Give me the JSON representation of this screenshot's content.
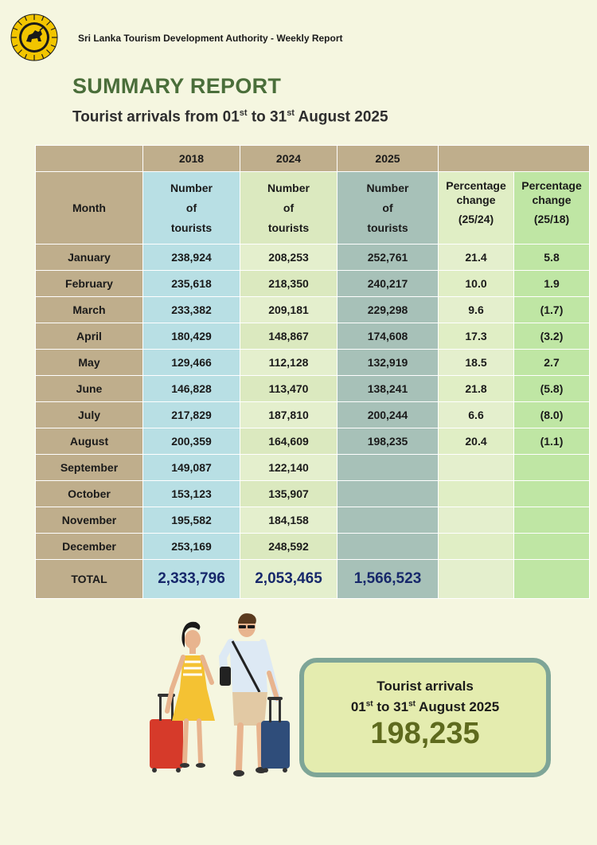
{
  "header": {
    "org_line": "Sri Lanka Tourism Development Authority - Weekly Report",
    "title": "SUMMARY REPORT",
    "subtitle_parts": [
      "Tourist arrivals from 01",
      "st",
      " to 31",
      "st",
      " August 2025"
    ]
  },
  "table": {
    "years": [
      "2018",
      "2024",
      "2025"
    ],
    "month_header": "Month",
    "count_header": [
      "Number",
      "of",
      "tourists"
    ],
    "pct_headers": [
      {
        "line1": "Percentage",
        "line2": "change",
        "line3": "(25/24)"
      },
      {
        "line1": "Percentage",
        "line2": "change",
        "line3": "(25/18)"
      }
    ],
    "rows": [
      {
        "month": "January",
        "y2018": "238,924",
        "y2024": "208,253",
        "y2025": "252,761",
        "pct_25_24": "21.4",
        "pct_25_18": "5.8"
      },
      {
        "month": "February",
        "y2018": "235,618",
        "y2024": "218,350",
        "y2025": "240,217",
        "pct_25_24": "10.0",
        "pct_25_18": "1.9"
      },
      {
        "month": "March",
        "y2018": "233,382",
        "y2024": "209,181",
        "y2025": "229,298",
        "pct_25_24": "9.6",
        "pct_25_18": "(1.7)"
      },
      {
        "month": "April",
        "y2018": "180,429",
        "y2024": "148,867",
        "y2025": "174,608",
        "pct_25_24": "17.3",
        "pct_25_18": "(3.2)"
      },
      {
        "month": "May",
        "y2018": "129,466",
        "y2024": "112,128",
        "y2025": "132,919",
        "pct_25_24": "18.5",
        "pct_25_18": "2.7"
      },
      {
        "month": "June",
        "y2018": "146,828",
        "y2024": "113,470",
        "y2025": "138,241",
        "pct_25_24": "21.8",
        "pct_25_18": "(5.8)"
      },
      {
        "month": "July",
        "y2018": "217,829",
        "y2024": "187,810",
        "y2025": "200,244",
        "pct_25_24": "6.6",
        "pct_25_18": "(8.0)"
      },
      {
        "month": "August",
        "y2018": "200,359",
        "y2024": "164,609",
        "y2025": "198,235",
        "pct_25_24": "20.4",
        "pct_25_18": "(1.1)"
      },
      {
        "month": "September",
        "y2018": "149,087",
        "y2024": "122,140",
        "y2025": "",
        "pct_25_24": "",
        "pct_25_18": ""
      },
      {
        "month": "October",
        "y2018": "153,123",
        "y2024": "135,907",
        "y2025": "",
        "pct_25_24": "",
        "pct_25_18": ""
      },
      {
        "month": "November",
        "y2018": "195,582",
        "y2024": "184,158",
        "y2025": "",
        "pct_25_24": "",
        "pct_25_18": ""
      },
      {
        "month": "December",
        "y2018": "253,169",
        "y2024": "248,592",
        "y2025": "",
        "pct_25_24": "",
        "pct_25_18": ""
      }
    ],
    "total": {
      "label": "TOTAL",
      "y2018": "2,333,796",
      "y2024": "2,053,465",
      "y2025": "1,566,523"
    }
  },
  "summary_box": {
    "line1": "Tourist arrivals",
    "line2_parts": [
      "01",
      "st",
      " to 31",
      "st",
      " August 2025"
    ],
    "value": "198,235"
  },
  "colors": {
    "title_green": "#4a6e3a",
    "total_navy": "#17286b",
    "box_border": "#7ea597",
    "box_fill": "#e4ecaf",
    "value_olive": "#5e6a1e"
  }
}
